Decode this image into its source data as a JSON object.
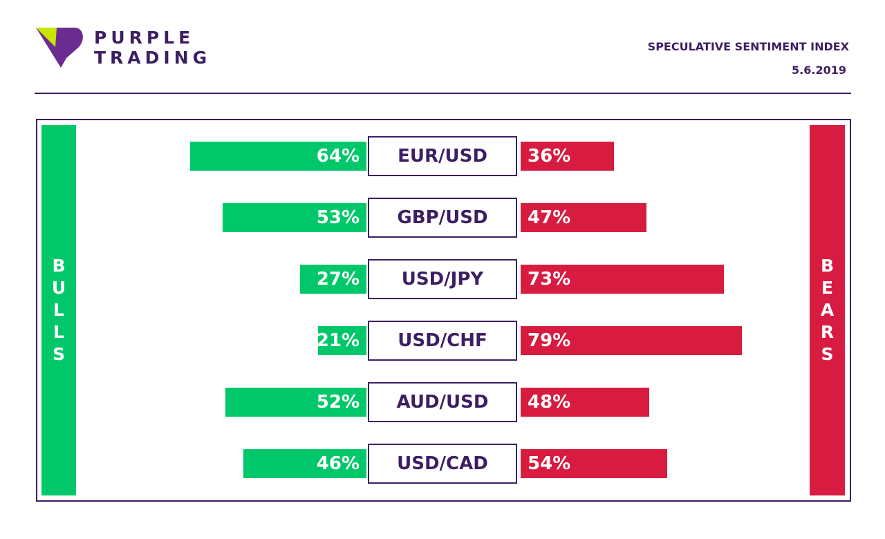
{
  "brand": {
    "line1": "PURPLE",
    "line2": "TRADING"
  },
  "header": {
    "title": "SPECULATIVE SENTIMENT INDEX",
    "date": "5.6.2019"
  },
  "colors": {
    "bulls": "#00c86a",
    "bears": "#d81b40",
    "accent": "#3d1e63",
    "logo_green": "#c8e600"
  },
  "side_labels": {
    "bulls": "BULLS",
    "bears": "BEARS"
  },
  "chart_data": {
    "type": "bar",
    "categories": [
      "EUR/USD",
      "GBP/USD",
      "USD/JPY",
      "USD/CHF",
      "AUD/USD",
      "USD/CAD"
    ],
    "series": [
      {
        "name": "BULLS",
        "values": [
          64,
          53,
          27,
          21,
          52,
          46
        ]
      },
      {
        "name": "BEARS",
        "values": [
          36,
          47,
          73,
          79,
          48,
          54
        ]
      }
    ],
    "value_labels": {
      "bulls": [
        "64%",
        "53%",
        "27%",
        "21%",
        "52%",
        "46%"
      ],
      "bears": [
        "36%",
        "47%",
        "73%",
        "79%",
        "48%",
        "54%"
      ]
    },
    "ylim": [
      0,
      100
    ]
  }
}
